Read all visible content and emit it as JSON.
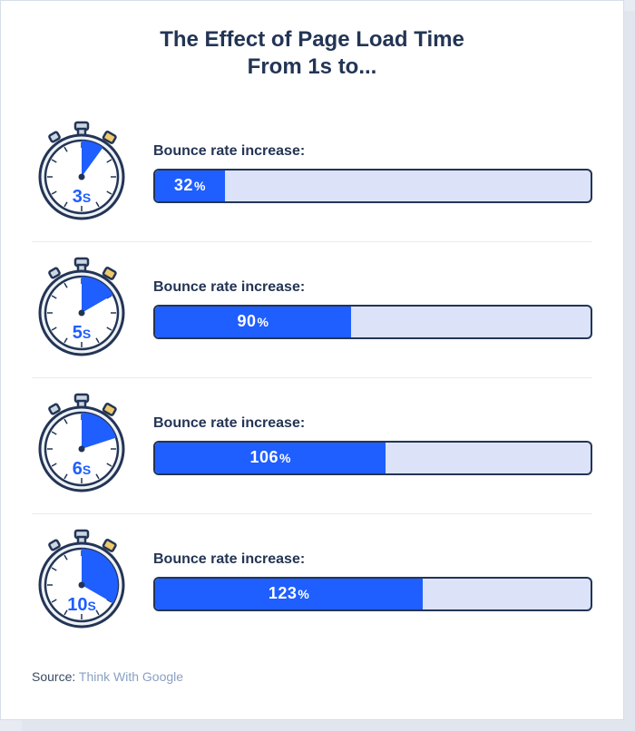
{
  "title_line1": "The Effect of Page Load Time",
  "title_line2": "From 1s to...",
  "bar_label": "Bounce rate increase:",
  "source_label": "Source:",
  "source_name": "Think With Google",
  "colors": {
    "card_bg": "#ffffff",
    "page_bg": "#e8ecf2",
    "border": "#d6dde8",
    "title": "#233555",
    "bar_track": "#dce2f7",
    "bar_border": "#233555",
    "bar_fill": "#1f5eff",
    "bar_text": "#ffffff",
    "divider": "#e7ebf2",
    "stopwatch_outline": "#233555",
    "stopwatch_face": "#ffffff",
    "stopwatch_wedge": "#1f5eff",
    "stopwatch_button": "#f0c96a",
    "stopwatch_knob": "#cdd6e4",
    "source_label": "#3a4b66",
    "source_name": "#8aa0c2"
  },
  "bar_scale_max_percent": 200,
  "rows": [
    {
      "seconds": "3",
      "unit": "S",
      "percent": 32,
      "wedge_deg": 36
    },
    {
      "seconds": "5",
      "unit": "S",
      "percent": 90,
      "wedge_deg": 60
    },
    {
      "seconds": "6",
      "unit": "S",
      "percent": 106,
      "wedge_deg": 72
    },
    {
      "seconds": "10",
      "unit": "S",
      "percent": 123,
      "wedge_deg": 120
    }
  ],
  "typography": {
    "title_fontsize": 24,
    "bar_label_fontsize": 16,
    "bar_value_fontsize": 18,
    "stopwatch_label_fontsize": 20,
    "source_fontsize": 14
  }
}
